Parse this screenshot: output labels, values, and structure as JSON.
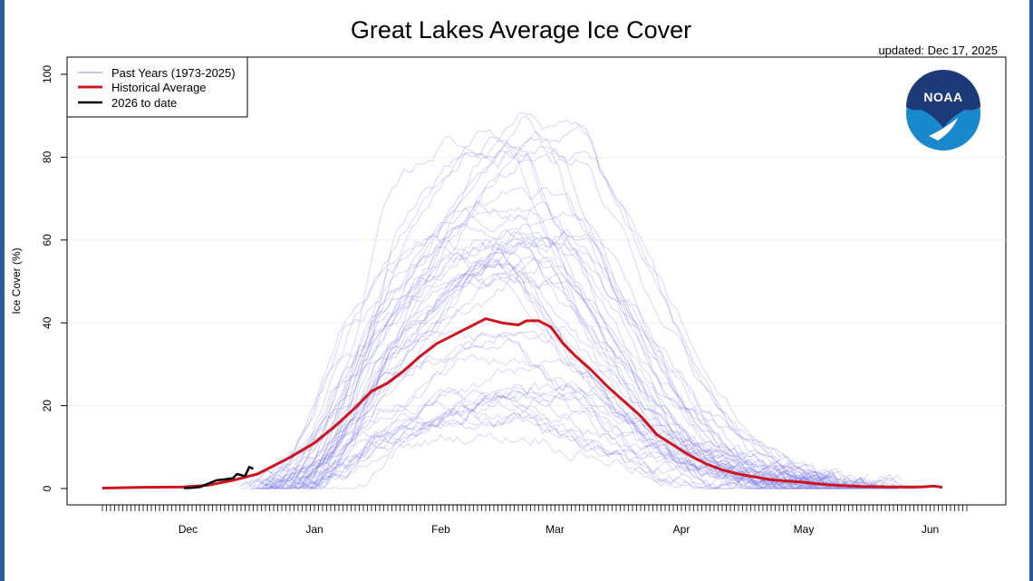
{
  "chart_data": {
    "type": "line",
    "title": "Great Lakes Average Ice Cover",
    "subtitle": "updated: Dec 17, 2025",
    "ylabel": "Ice Cover (%)",
    "xlabel": "",
    "ylim": [
      0,
      100
    ],
    "yticks": [
      0,
      20,
      40,
      60,
      80,
      100
    ],
    "x_unit": "day index from Nov 10",
    "xlim": [
      0,
      212
    ],
    "xticks": [
      {
        "label": "Dec",
        "x": 21
      },
      {
        "label": "Jan",
        "x": 52
      },
      {
        "label": "Feb",
        "x": 83
      },
      {
        "label": "Mar",
        "x": 111
      },
      {
        "label": "Apr",
        "x": 142
      },
      {
        "label": "May",
        "x": 172
      },
      {
        "label": "Jun",
        "x": 203
      }
    ],
    "legend_position": "top-left",
    "legend": [
      {
        "label": "Past Years (1973-2025)",
        "color": "#c8c8f0"
      },
      {
        "label": "Historical Average",
        "color": "#d0141e"
      },
      {
        "label": "2026 to date",
        "color": "#000000"
      }
    ],
    "series": [
      {
        "name": "Historical Average",
        "color": "#d0141e",
        "x": [
          0,
          10,
          20,
          26,
          32,
          38,
          42,
          46,
          52,
          57,
          62,
          66,
          70,
          74,
          78,
          82,
          86,
          90,
          94,
          98,
          102,
          104,
          107,
          110,
          113,
          116,
          120,
          124,
          128,
          132,
          136,
          140,
          144,
          148,
          152,
          156,
          160,
          164,
          168,
          172,
          178,
          186,
          194,
          201,
          204,
          206
        ],
        "y": [
          0.1,
          0.3,
          0.4,
          0.8,
          2.0,
          3.5,
          5.5,
          7.5,
          11,
          15,
          19.5,
          23.5,
          25.5,
          28.5,
          32,
          35,
          37,
          39,
          41,
          40,
          39.5,
          40.5,
          40.5,
          39,
          35,
          32,
          28.5,
          24.5,
          21,
          17.5,
          13,
          10.5,
          8,
          6,
          4.5,
          3.5,
          2.8,
          2.1,
          1.8,
          1.5,
          0.9,
          0.5,
          0.4,
          0.4,
          0.6,
          0.3
        ]
      },
      {
        "name": "2026 to date",
        "color": "#000000",
        "x": [
          20,
          22,
          24,
          26,
          28,
          30,
          32,
          33,
          35,
          36,
          37
        ],
        "y": [
          0.1,
          0.2,
          0.4,
          1.2,
          2.0,
          2.2,
          2.5,
          3.5,
          3.0,
          5.2,
          4.8
        ]
      }
    ],
    "past_years_series_count": 53
  }
}
